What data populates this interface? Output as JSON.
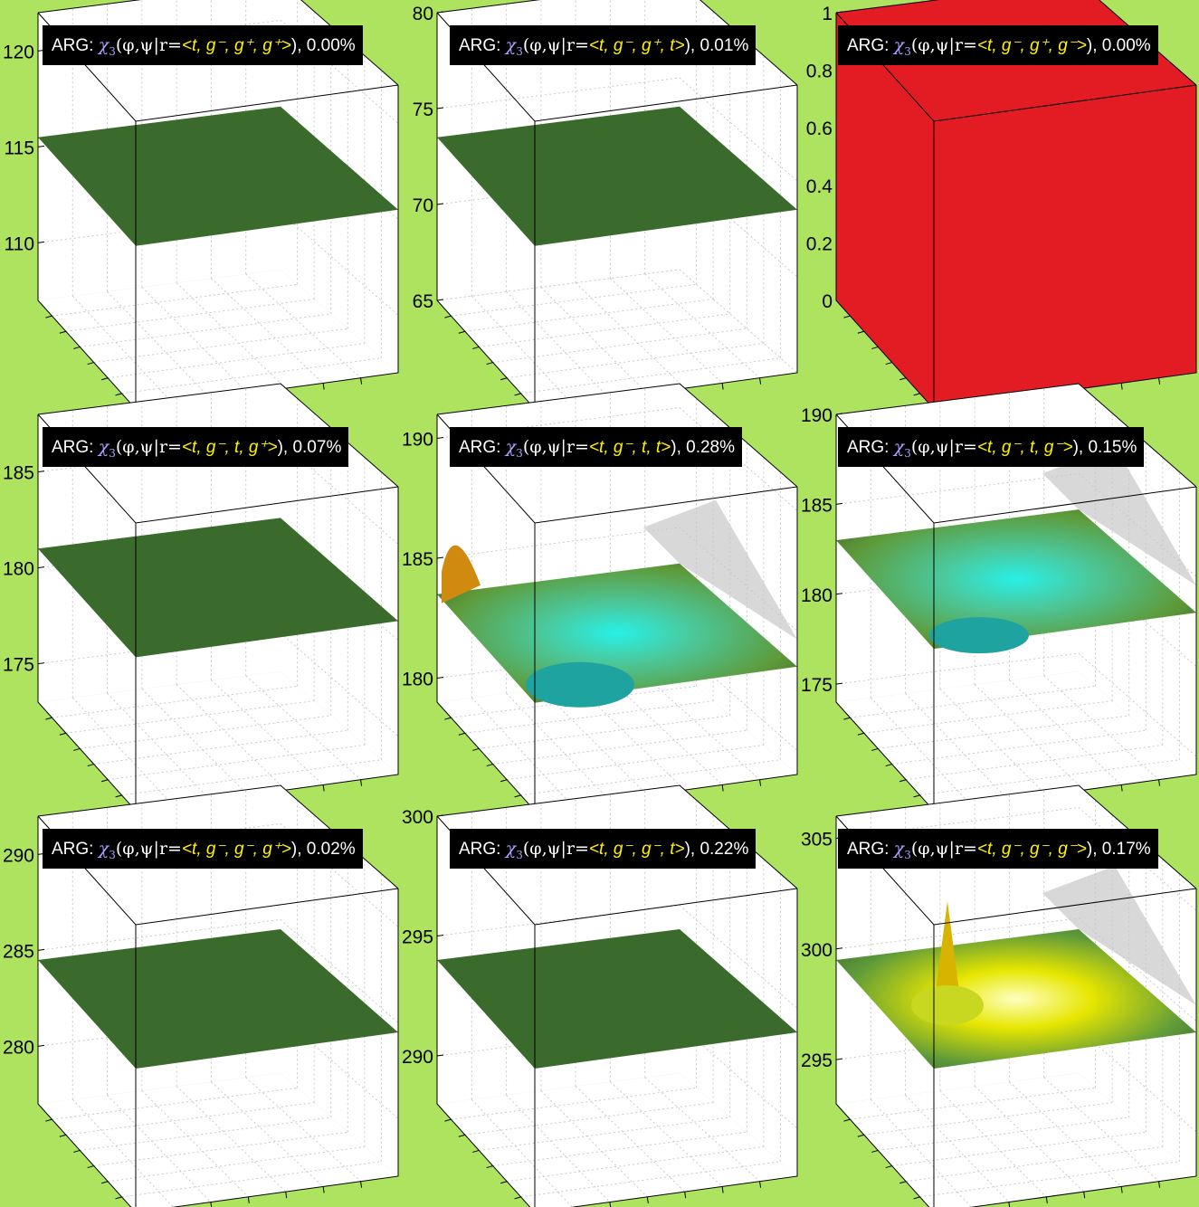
{
  "colors": {
    "background": "#aee35f",
    "surface_flat": "#3a6a2c",
    "surface_red": "#e31b23",
    "title_bar": "#000000",
    "chi_symbol": "#a9a0ff",
    "args_text": "#fff200",
    "shadow": "#c8c8c8"
  },
  "chart_data": [
    {
      "type": "surface3d",
      "title": {
        "prefix": "ARG: ",
        "fn": "χ",
        "sub": "3",
        "vars": "(φ,ψ|r=",
        "args": "<t, g⁻, g⁺, g⁺>",
        "suffix": "), 0.00%"
      },
      "zticks": [
        "110",
        "115",
        "120"
      ],
      "zlim": [
        107,
        122
      ],
      "surface": "flat",
      "level": 115.5
    },
    {
      "type": "surface3d",
      "title": {
        "prefix": "ARG: ",
        "fn": "χ",
        "sub": "3",
        "vars": "(φ,ψ|r=",
        "args": "<t, g⁻, g⁺, t>",
        "suffix": "), 0.01%"
      },
      "zticks": [
        "65",
        "70",
        "75",
        "80"
      ],
      "zlim": [
        65,
        80
      ],
      "surface": "flat",
      "level": 73.5
    },
    {
      "type": "surface3d",
      "title": {
        "prefix": "ARG: ",
        "fn": "χ",
        "sub": "3",
        "vars": "(φ,ψ|r=",
        "args": "<t, g⁻, g⁺, g⁻>",
        "suffix": "), 0.00%"
      },
      "zticks": [
        "0",
        "0.2",
        "0.4",
        "0.6",
        "0.8",
        "1"
      ],
      "zlim": [
        0,
        1
      ],
      "surface": "cube"
    },
    {
      "type": "surface3d",
      "title": {
        "prefix": "ARG: ",
        "fn": "χ",
        "sub": "3",
        "vars": "(φ,ψ|r=",
        "args": "<t, g⁻, t, g⁺>",
        "suffix": "), 0.07%"
      },
      "zticks": [
        "175",
        "180",
        "185"
      ],
      "zlim": [
        173,
        188
      ],
      "surface": "flat",
      "level": 181
    },
    {
      "type": "surface3d",
      "title": {
        "prefix": "ARG: ",
        "fn": "χ",
        "sub": "3",
        "vars": "(φ,ψ|r=",
        "args": "<t, g⁻, t, t>",
        "suffix": "), 0.28%"
      },
      "zticks": [
        "180",
        "185",
        "190"
      ],
      "zlim": [
        179,
        191
      ],
      "surface": "well",
      "level": 183.5
    },
    {
      "type": "surface3d",
      "title": {
        "prefix": "ARG: ",
        "fn": "χ",
        "sub": "3",
        "vars": "(φ,ψ|r=",
        "args": "<t, g⁻, t, g⁻>",
        "suffix": "), 0.15%"
      },
      "zticks": [
        "175",
        "180",
        "185",
        "190"
      ],
      "zlim": [
        174,
        190
      ],
      "surface": "well2",
      "level": 183
    },
    {
      "type": "surface3d",
      "title": {
        "prefix": "ARG: ",
        "fn": "χ",
        "sub": "3",
        "vars": "(φ,ψ|r=",
        "args": "<t, g⁻, g⁻, g⁺>",
        "suffix": "), 0.02%"
      },
      "zticks": [
        "280",
        "285",
        "290"
      ],
      "zlim": [
        277,
        292
      ],
      "surface": "flat",
      "level": 284.5
    },
    {
      "type": "surface3d",
      "title": {
        "prefix": "ARG: ",
        "fn": "χ",
        "sub": "3",
        "vars": "(φ,ψ|r=",
        "args": "<t, g⁻, g⁻, t>",
        "suffix": "), 0.22%"
      },
      "zticks": [
        "290",
        "295",
        "300"
      ],
      "zlim": [
        288,
        300
      ],
      "surface": "flat",
      "level": 294
    },
    {
      "type": "surface3d",
      "title": {
        "prefix": "ARG: ",
        "fn": "χ",
        "sub": "3",
        "vars": "(φ,ψ|r=",
        "args": "<t, g⁻, g⁻, g⁻>",
        "suffix": "), 0.17%"
      },
      "zticks": [
        "295",
        "300",
        "305"
      ],
      "zlim": [
        293,
        306
      ],
      "surface": "peak",
      "level": 299.5
    }
  ]
}
